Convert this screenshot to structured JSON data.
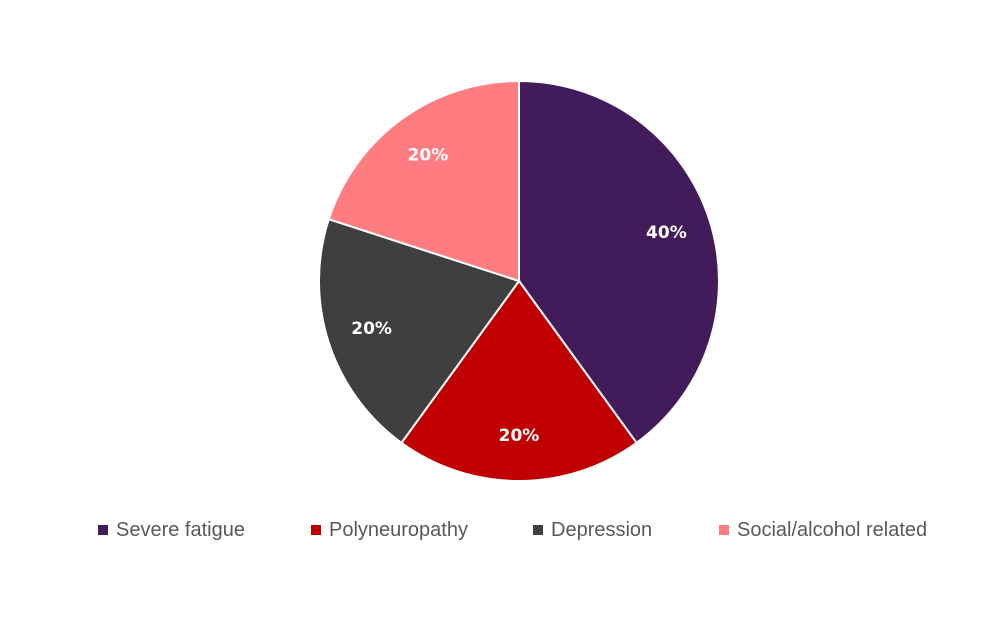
{
  "chart_data": {
    "type": "pie",
    "categories": [
      "Severe fatigue",
      "Polyneuropathy",
      "Depression",
      "Social/alcohol related"
    ],
    "values": [
      40,
      20,
      20,
      20
    ],
    "labels": [
      "40%",
      "20%",
      "20%",
      "20%"
    ],
    "colors": [
      "#421B5B",
      "#C00000",
      "#3F3F3F",
      "#FF7C80"
    ],
    "title": "",
    "legend_position": "bottom"
  }
}
